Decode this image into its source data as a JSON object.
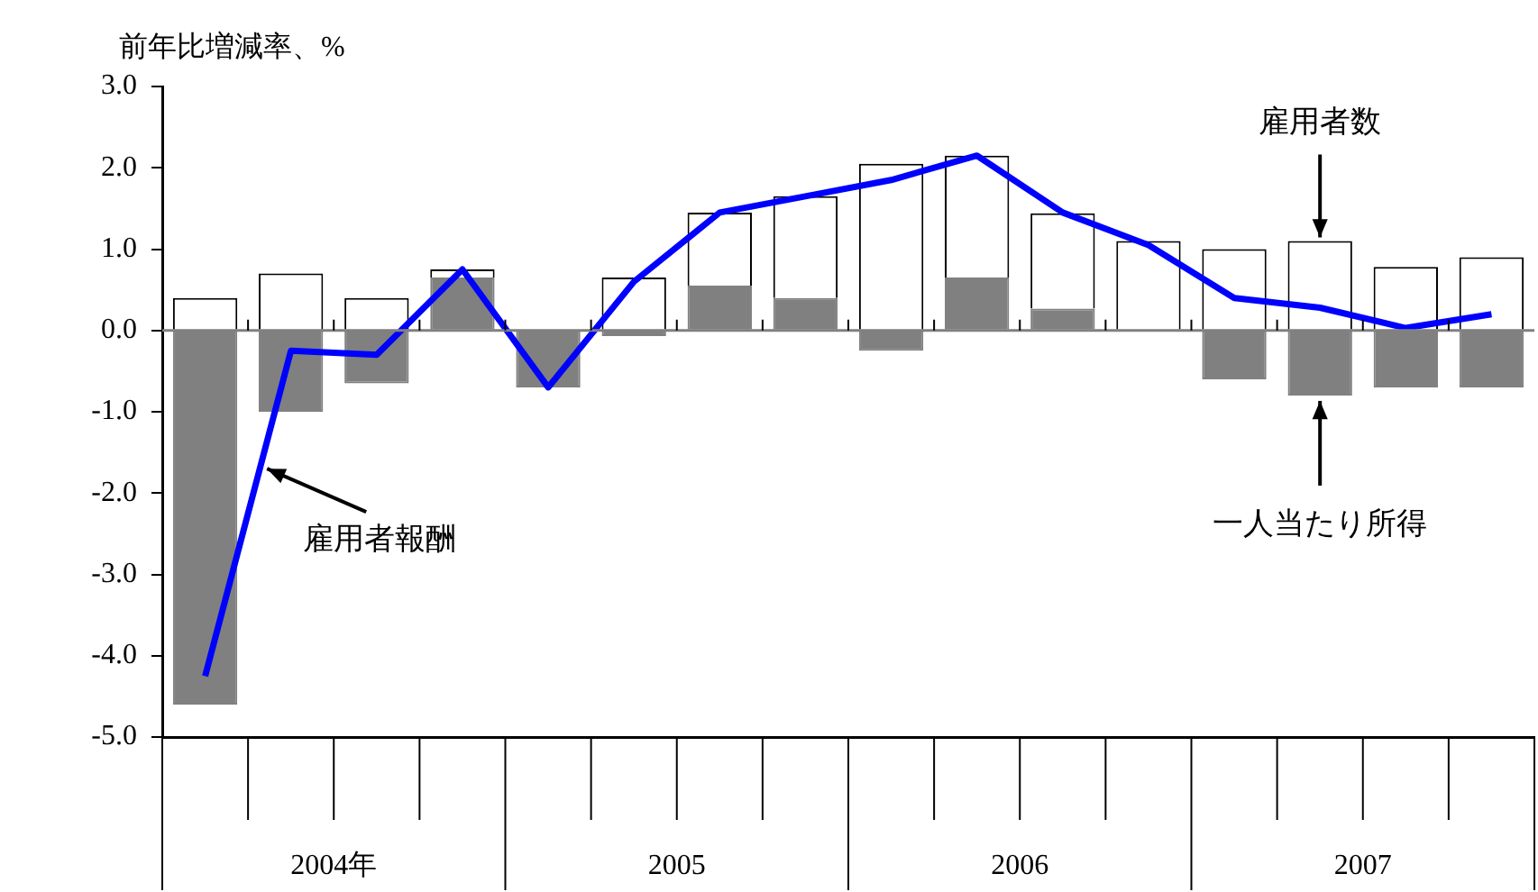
{
  "chart_data": {
    "type": "bar",
    "ylabel": "前年比増減率、%",
    "categories": [
      null,
      null,
      null,
      null,
      null,
      null,
      null,
      null,
      null,
      null,
      null,
      null,
      null,
      null,
      null,
      null
    ],
    "stacked": true,
    "series": [
      {
        "name": "一人当たり所得",
        "color": "#808080",
        "values": [
          -4.6,
          -1.0,
          -0.65,
          0.65,
          -0.7,
          -0.07,
          0.55,
          0.4,
          -0.25,
          0.65,
          0.27,
          0.0,
          -0.6,
          -0.8,
          -0.7,
          -0.7
        ]
      },
      {
        "name": "雇用者数",
        "color": "#ffffff",
        "values": [
          0.4,
          0.7,
          0.4,
          0.1,
          0.0,
          0.65,
          0.9,
          1.25,
          2.05,
          1.5,
          1.17,
          1.1,
          1.0,
          1.1,
          0.78,
          0.9
        ]
      },
      {
        "name": "雇用者報酬",
        "type": "line",
        "color": "#0000ff",
        "values": [
          -4.25,
          -0.25,
          -0.3,
          0.75,
          -0.7,
          0.6,
          1.45,
          1.65,
          1.85,
          2.15,
          1.45,
          1.05,
          0.4,
          0.28,
          0.03,
          0.2
        ]
      }
    ],
    "ylim": [
      -5,
      3
    ],
    "yticks": [
      {
        "value": 3,
        "label": "3.0"
      },
      {
        "value": 2,
        "label": "2.0"
      },
      {
        "value": 1,
        "label": "1.0"
      },
      {
        "value": 0,
        "label": "0.0"
      },
      {
        "value": -1,
        "label": "-1.0"
      },
      {
        "value": -2,
        "label": "-2.0"
      },
      {
        "value": -3,
        "label": "-3.0"
      },
      {
        "value": -4,
        "label": "-4.0"
      },
      {
        "value": -5,
        "label": "-5.0"
      }
    ],
    "annotations": [
      "2004年",
      "2005",
      "2006",
      "2007"
    ],
    "ref_lines": [
      {
        "axis": "y",
        "value": 0,
        "color": "#808080"
      }
    ],
    "legend": false,
    "grid": false,
    "marker": "none",
    "line_style": "solid"
  }
}
